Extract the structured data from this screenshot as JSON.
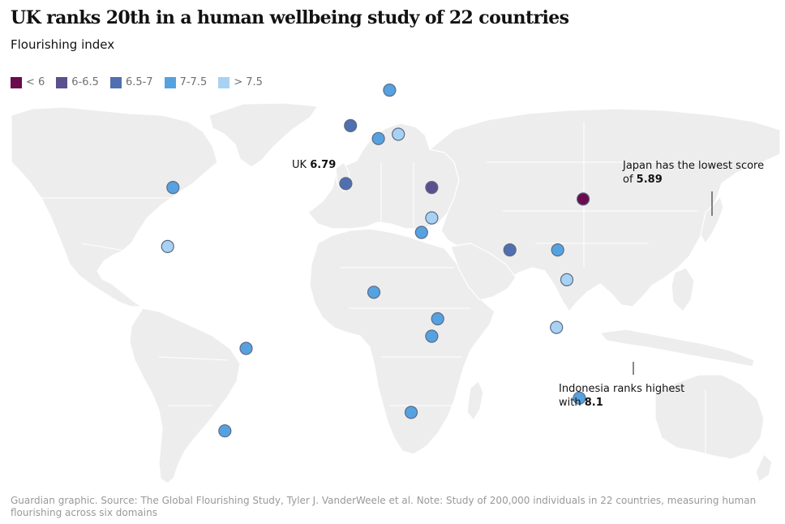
{
  "title": "UK ranks 20th in a human wellbeing study of 22 countries",
  "subtitle": "Flourishing index",
  "legend": [
    {
      "label": "< 6",
      "color": "#6b0a4f"
    },
    {
      "label": "6-6.5",
      "color": "#5b4f8e"
    },
    {
      "label": "6.5-7",
      "color": "#4f6fb0"
    },
    {
      "label": "7-7.5",
      "color": "#56a2e0"
    },
    {
      "label": "> 7.5",
      "color": "#a8d2f3"
    }
  ],
  "annotations": {
    "uk": {
      "label": "UK",
      "value": "6.79"
    },
    "japan": {
      "line1": "Japan has the lowest score",
      "line2_prefix": "of",
      "value": "5.89"
    },
    "indonesia": {
      "line1": "Indonesia ranks highest",
      "line2_prefix": "with",
      "value": "8.1"
    }
  },
  "countries": [
    {
      "name": "United States",
      "category": "7-7.5",
      "lon": -98,
      "lat": 39
    },
    {
      "name": "Mexico",
      "category": "> 7.5",
      "lon": -102,
      "lat": 23
    },
    {
      "name": "Brazil",
      "category": "7-7.5",
      "lon": -52,
      "lat": -10
    },
    {
      "name": "Argentina",
      "category": "7-7.5",
      "lon": -64,
      "lat": -34
    },
    {
      "name": "United Kingdom",
      "category": "6.5-7",
      "lon": -2,
      "lat": 54
    },
    {
      "name": "Spain",
      "category": "6.5-7",
      "lon": -4,
      "lat": 40
    },
    {
      "name": "Germany",
      "category": "7-7.5",
      "lon": 10,
      "lat": 51
    },
    {
      "name": "Poland",
      "category": "> 7.5",
      "lon": 19,
      "lat": 52
    },
    {
      "name": "Sweden",
      "category": "7-7.5",
      "lon": 15,
      "lat": 62
    },
    {
      "name": "Turkey",
      "category": "6-6.5",
      "lon": 35,
      "lat": 39
    },
    {
      "name": "Israel",
      "category": "> 7.5",
      "lon": 35,
      "lat": 31
    },
    {
      "name": "Egypt",
      "category": "7-7.5",
      "lon": 30,
      "lat": 27
    },
    {
      "name": "Nigeria",
      "category": "7-7.5",
      "lon": 8,
      "lat": 9
    },
    {
      "name": "Kenya",
      "category": "7-7.5",
      "lon": 38,
      "lat": 0
    },
    {
      "name": "Tanzania",
      "category": "7-7.5",
      "lon": 35,
      "lat": -6
    },
    {
      "name": "South Africa",
      "category": "7-7.5",
      "lon": 25,
      "lat": -29
    },
    {
      "name": "India",
      "category": "6.5-7",
      "lon": 79,
      "lat": 22
    },
    {
      "name": "Hong Kong",
      "category": "7-7.5",
      "lon": 114,
      "lat": 22
    },
    {
      "name": "Philippines",
      "category": "> 7.5",
      "lon": 122,
      "lat": 13
    },
    {
      "name": "Indonesia",
      "category": "> 7.5",
      "lon": 113,
      "lat": -3
    },
    {
      "name": "Japan",
      "category": "< 6",
      "lon": 138,
      "lat": 36
    },
    {
      "name": "Australia",
      "category": "7-7.5",
      "lon": 134,
      "lat": -25
    }
  ],
  "source": "Guardian graphic. Source: The Global Flourishing Study, Tyler J. VanderWeele et al. Note: Study of 200,000 individuals in 22 countries, measuring human flourishing across six domains"
}
